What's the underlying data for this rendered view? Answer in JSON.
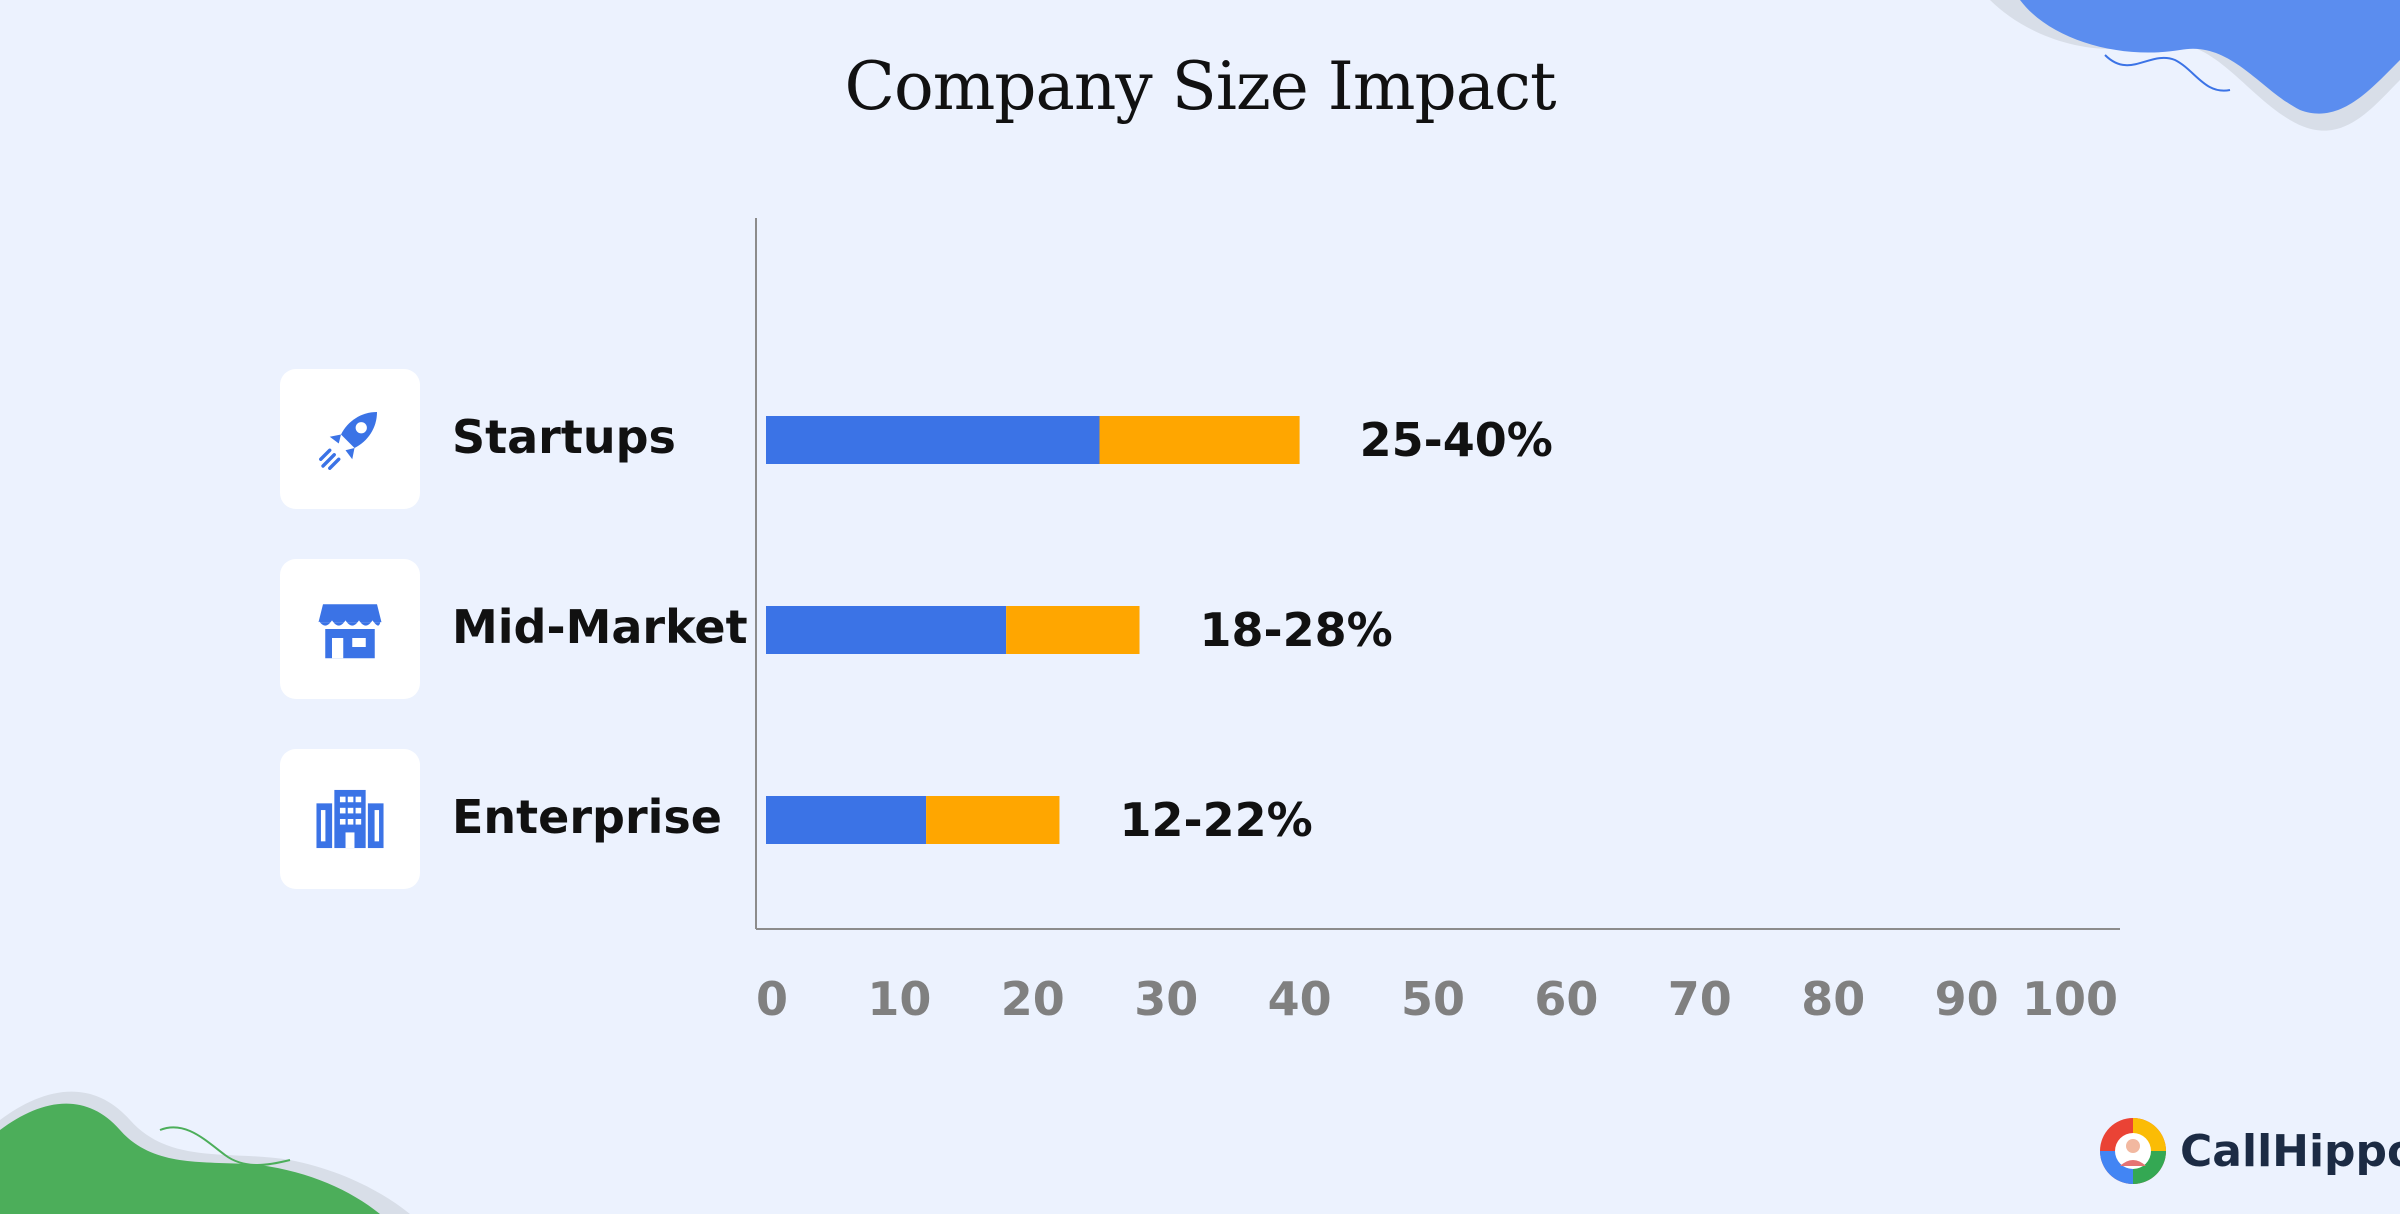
{
  "title": "Company Size Impact",
  "brand": {
    "name": "CallHippo"
  },
  "chart_data": {
    "type": "bar",
    "orientation": "horizontal",
    "stacked": true,
    "title": "Company Size Impact",
    "categories": [
      "Startups",
      "Mid-Market",
      "Enterprise"
    ],
    "category_icons": [
      "rocket-icon",
      "store-icon",
      "office-building-icon"
    ],
    "series": [
      {
        "values": [
          25,
          18,
          12
        ],
        "color": "#3b73e6"
      },
      {
        "values": [
          15,
          10,
          10
        ],
        "color": "#ffa600"
      }
    ],
    "data_labels": [
      "25-40%",
      "18-28%",
      "12-22%"
    ],
    "xlim": [
      0,
      100
    ],
    "xticks": [
      0,
      10,
      20,
      30,
      40,
      50,
      60,
      70,
      80,
      90,
      100
    ],
    "grid": false,
    "legend": "none"
  },
  "colors": {
    "background": "#ecf2fe",
    "primary": "#3b73e6",
    "accent": "#ffa600",
    "axis": "#8c8c8c",
    "tick_text": "#808080"
  }
}
